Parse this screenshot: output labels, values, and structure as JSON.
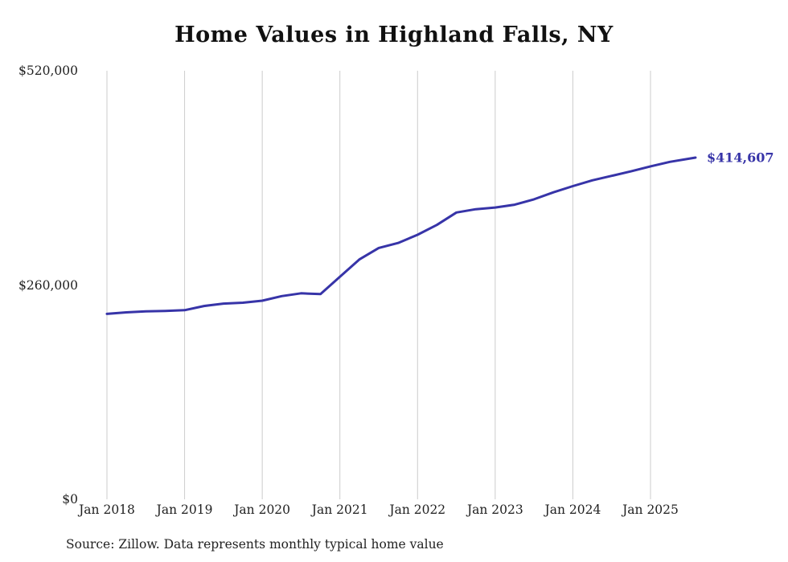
{
  "page": {
    "title": "Home Values in Highland Falls, NY",
    "source_note": "Source: Zillow. Data represents monthly typical home value"
  },
  "colors": {
    "background": "#ffffff",
    "line": "#3734a8",
    "grid": "#cccccc",
    "title_text": "#111111",
    "tick_text": "#1f1f1f",
    "end_label": "#3734a8"
  },
  "chart_data": {
    "type": "line",
    "title": "Home Values in Highland Falls, NY",
    "xlabel": "",
    "ylabel": "",
    "ylim": [
      0,
      520000
    ],
    "xlim": [
      2018.0,
      2025.58
    ],
    "grid": "vertical",
    "legend": "none",
    "yticks": [
      {
        "value": 0,
        "label": "$0"
      },
      {
        "value": 260000,
        "label": "$260,000"
      },
      {
        "value": 520000,
        "label": "$520,000"
      }
    ],
    "xticks": [
      {
        "value": 2018,
        "label": "Jan 2018"
      },
      {
        "value": 2019,
        "label": "Jan 2019"
      },
      {
        "value": 2020,
        "label": "Jan 2020"
      },
      {
        "value": 2021,
        "label": "Jan 2021"
      },
      {
        "value": 2022,
        "label": "Jan 2022"
      },
      {
        "value": 2023,
        "label": "Jan 2023"
      },
      {
        "value": 2024,
        "label": "Jan 2024"
      },
      {
        "value": 2025,
        "label": "Jan 2025"
      }
    ],
    "series": [
      {
        "name": "Typical home value",
        "x": [
          2018.0,
          2018.25,
          2018.5,
          2018.75,
          2019.0,
          2019.25,
          2019.5,
          2019.75,
          2020.0,
          2020.25,
          2020.5,
          2020.75,
          2021.0,
          2021.25,
          2021.5,
          2021.75,
          2022.0,
          2022.25,
          2022.5,
          2022.75,
          2023.0,
          2023.25,
          2023.5,
          2023.75,
          2024.0,
          2024.25,
          2024.5,
          2024.75,
          2025.0,
          2025.25,
          2025.58
        ],
        "values": [
          225000,
          226800,
          228000,
          228600,
          229500,
          234500,
          237500,
          238500,
          241000,
          246500,
          250000,
          249000,
          270000,
          291000,
          305000,
          311000,
          321000,
          333000,
          348000,
          352000,
          354000,
          357500,
          364000,
          372500,
          380000,
          387000,
          392500,
          398000,
          404000,
          409500,
          414607
        ]
      }
    ],
    "final_value": 414607,
    "end_label": "$414,607"
  }
}
